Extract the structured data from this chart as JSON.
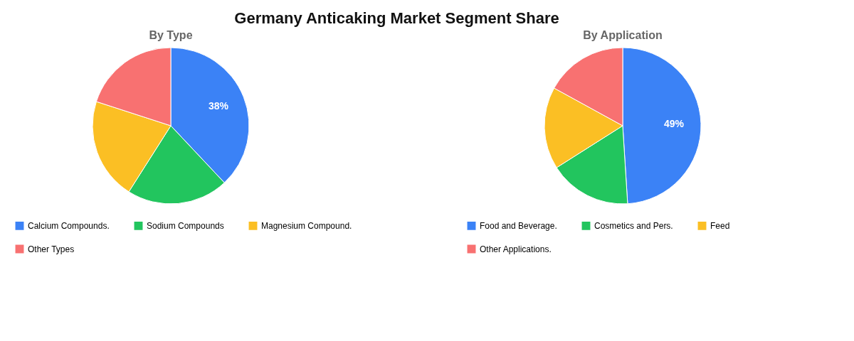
{
  "chart_data": [
    {
      "type": "pie",
      "title": "Germany Anticaking Market Segment Share",
      "subtitle": "By Type",
      "categories": [
        "Calcium Compounds.",
        "Sodium Compounds",
        "Magnesium Compound.",
        "Other Types"
      ],
      "values": [
        38,
        21,
        21,
        20
      ],
      "colors": [
        "#3b82f6",
        "#22c55e",
        "#fbbf24",
        "#f87171"
      ],
      "value_labels": [
        "38%",
        null,
        null,
        null
      ],
      "legend": "bottom"
    },
    {
      "type": "pie",
      "subtitle": "By Application",
      "categories": [
        "Food and Beverage.",
        "Cosmetics and Pers.",
        "Feed",
        "Other Applications."
      ],
      "values": [
        49,
        17,
        17,
        17
      ],
      "colors": [
        "#3b82f6",
        "#22c55e",
        "#fbbf24",
        "#f87171"
      ],
      "value_labels": [
        "49%",
        null,
        null,
        null
      ],
      "legend": "bottom"
    }
  ]
}
